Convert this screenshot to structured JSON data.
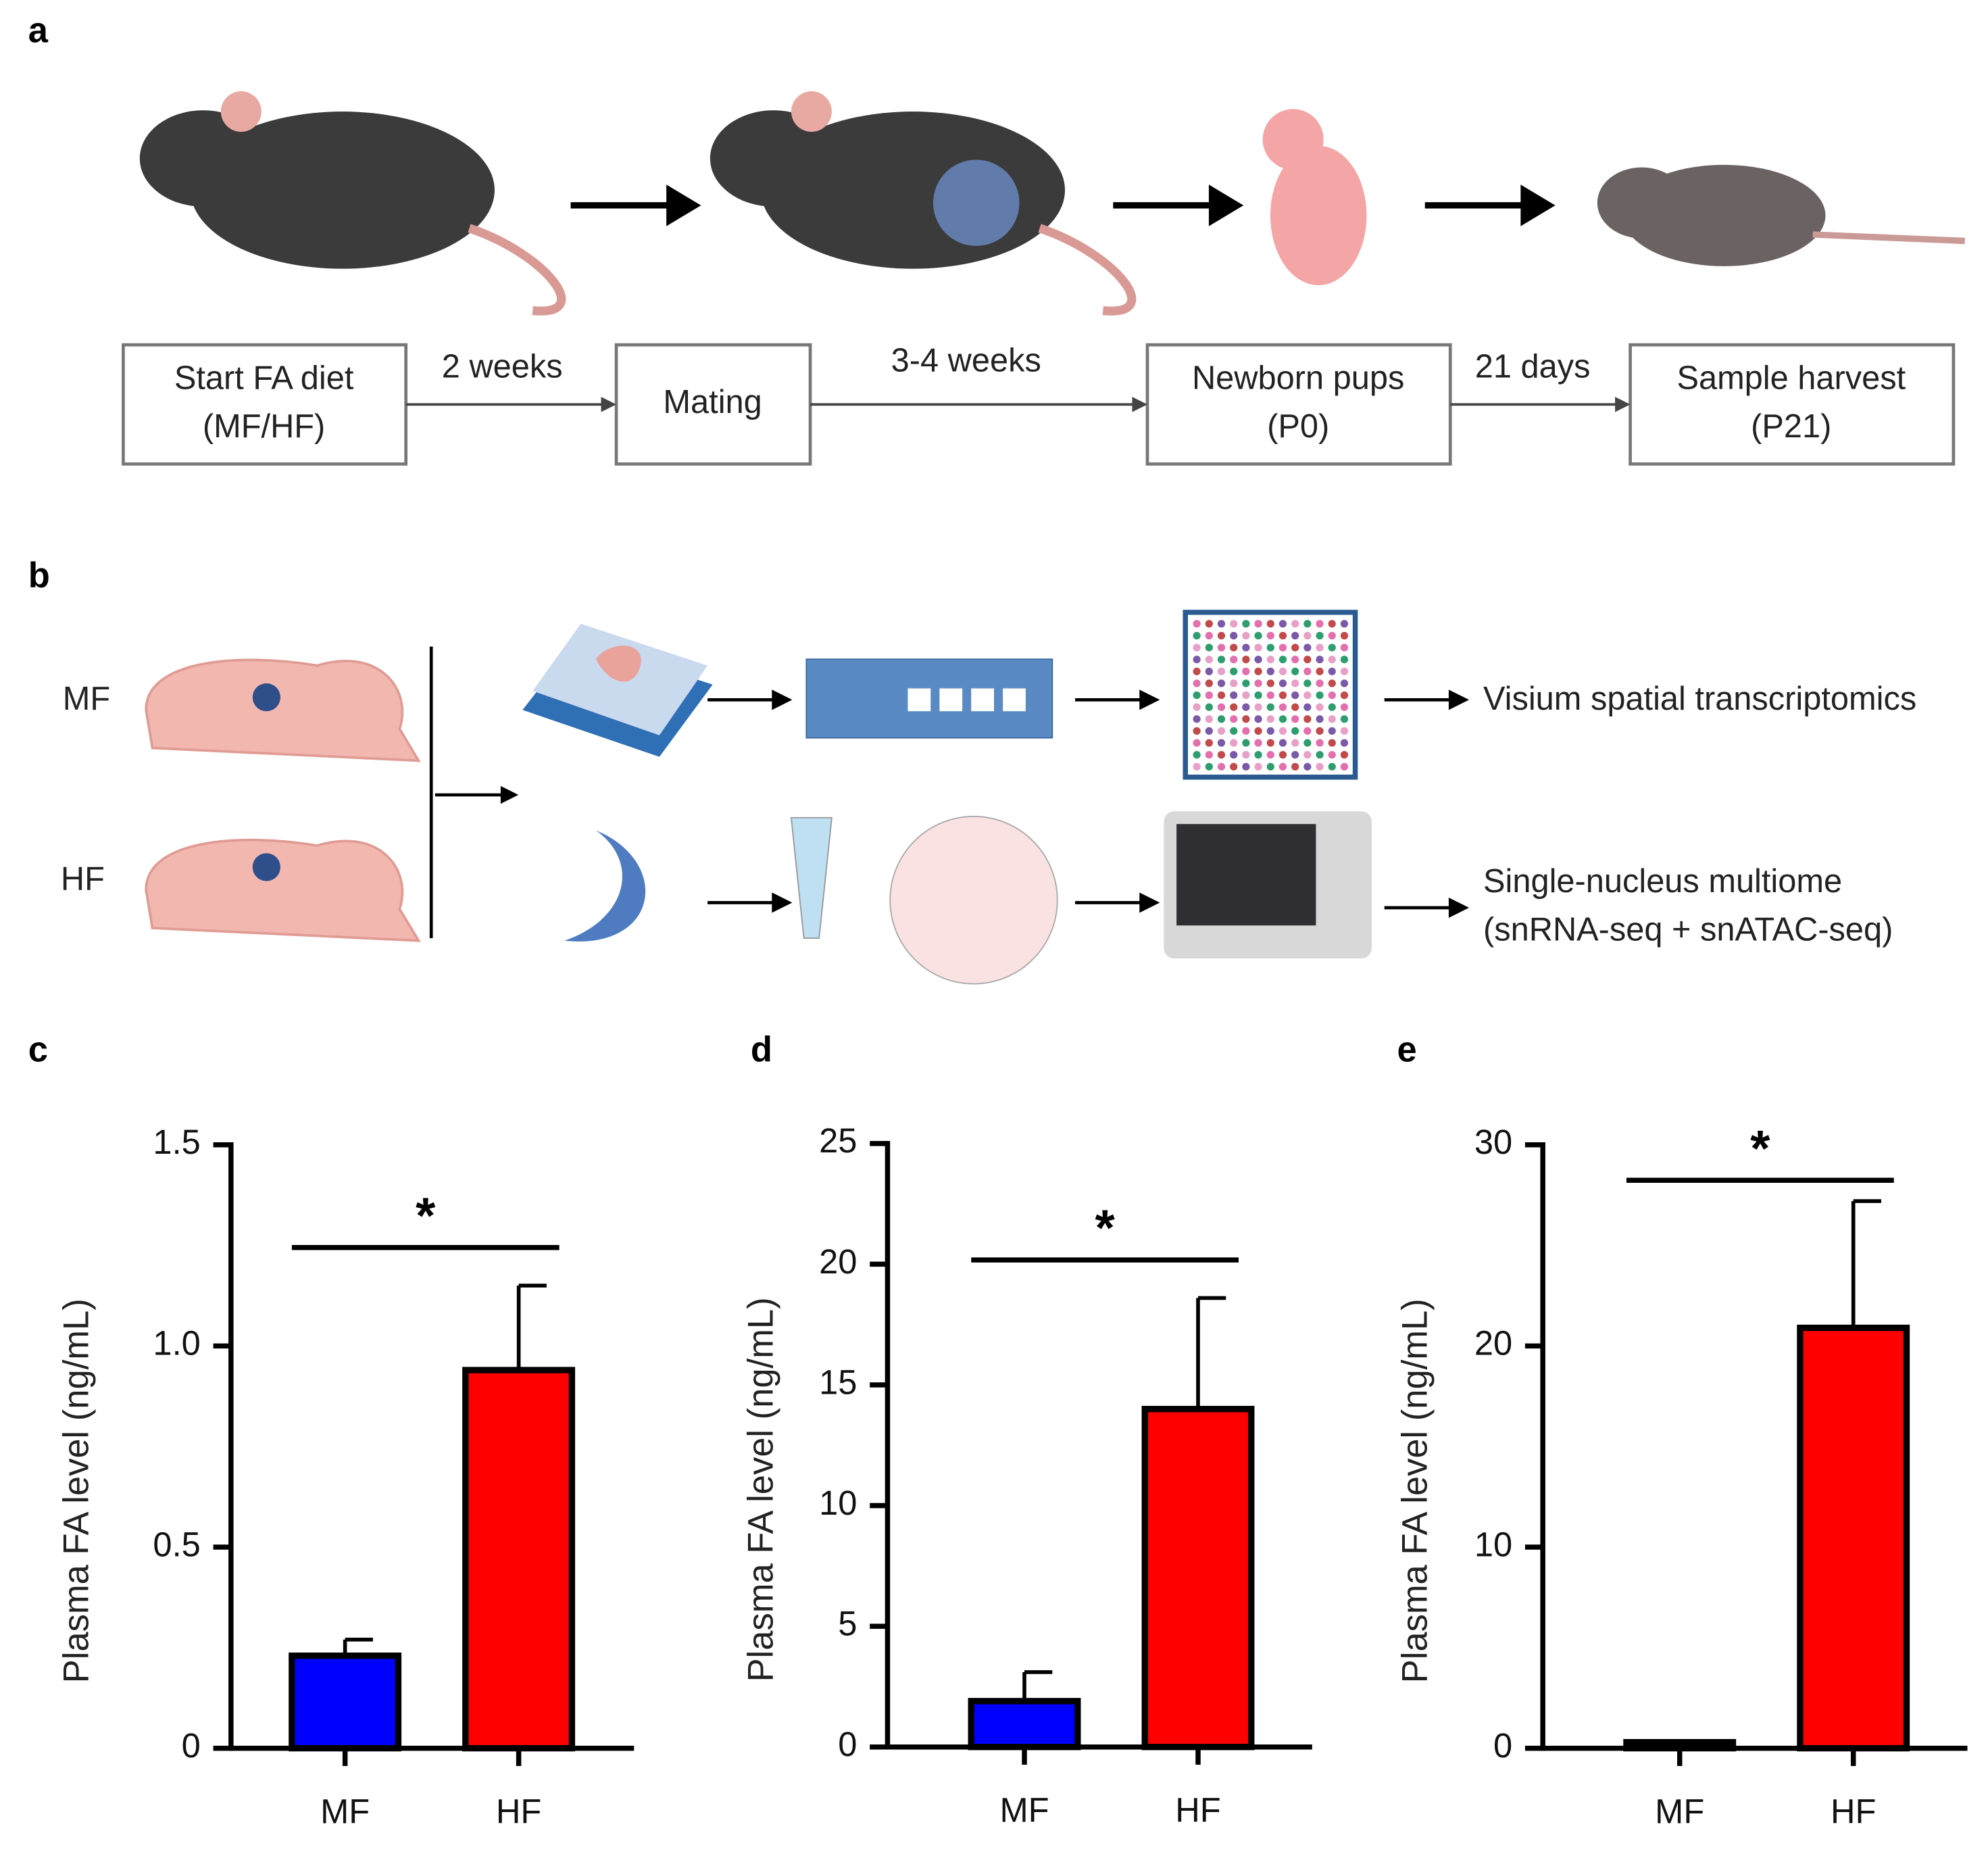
{
  "panel_labels": [
    "a",
    "b",
    "c",
    "d",
    "e"
  ],
  "timeline": {
    "steps": [
      [
        "Start FA diet",
        "(MF/HF)"
      ],
      [
        "Mating"
      ],
      [
        "Newborn pups",
        "(P0)"
      ],
      [
        "Sample harvest",
        "(P21)"
      ]
    ],
    "intervals": [
      "2 weeks",
      "3-4 weeks",
      "21 days"
    ]
  },
  "workflow": {
    "groups": [
      "MF",
      "HF"
    ],
    "outputs": [
      [
        "Visium spatial transcriptomics"
      ],
      [
        "Single-nucleus multiome",
        "(snRNA-seq + snATAC-seq)"
      ]
    ]
  },
  "chart_data": [
    {
      "type": "bar",
      "y_label": "Plasma FA level (ng/mL)",
      "categories": [
        "MF",
        "HF"
      ],
      "values": [
        0.23,
        0.94
      ],
      "errors": [
        0.04,
        0.21
      ],
      "colors": [
        "#0000ff",
        "#ff0000"
      ],
      "ylim": [
        0,
        1.5
      ],
      "yticks": [
        0,
        0.5,
        {
          "value": 1,
          "label": "1.0"
        },
        1.5
      ],
      "annotation": "*"
    },
    {
      "type": "bar",
      "y_label": "Plasma FA level (ng/mL)",
      "categories": [
        "MF",
        "HF"
      ],
      "values": [
        1.9,
        14.0
      ],
      "errors": [
        1.2,
        4.6
      ],
      "colors": [
        "#0000ff",
        "#ff0000"
      ],
      "ylim": [
        0,
        25
      ],
      "yticks": [
        0,
        5,
        10,
        15,
        20,
        25
      ],
      "annotation": "*"
    },
    {
      "type": "bar",
      "y_label": "Plasma FA level (ng/mL)",
      "categories": [
        "MF",
        "HF"
      ],
      "values": [
        0.3,
        20.9
      ],
      "errors": [
        0,
        6.3
      ],
      "colors": [
        "#0000ff",
        "#ff0000"
      ],
      "ylim": [
        0,
        30
      ],
      "yticks": [
        0,
        10,
        20,
        30
      ],
      "annotation": "*"
    }
  ]
}
